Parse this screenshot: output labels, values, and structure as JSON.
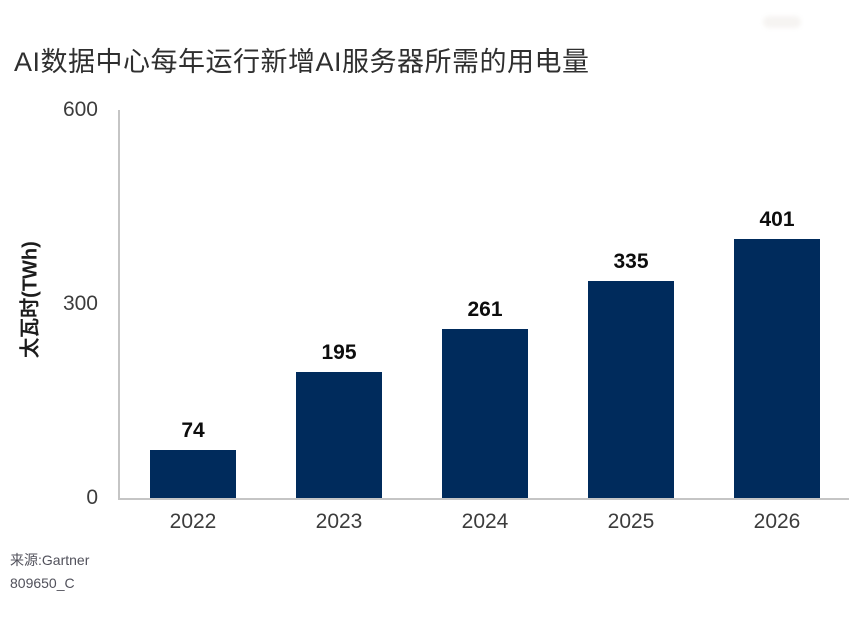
{
  "chart_data": {
    "type": "bar",
    "title": "AI数据中心每年运行新增AI服务器所需的用电量",
    "xlabel": "",
    "ylabel": "太瓦时(TWh)",
    "categories": [
      "2022",
      "2023",
      "2024",
      "2025",
      "2026"
    ],
    "values": [
      74,
      195,
      261,
      335,
      401
    ],
    "ylim": [
      0,
      600
    ],
    "yticks": [
      0,
      300,
      600
    ],
    "grid": false,
    "legend_position": "none",
    "bar_color": "#002b5c",
    "axis_color": "#c5c5c5"
  },
  "footer": {
    "source": "来源:Gartner",
    "doc_id": "809650_C"
  }
}
